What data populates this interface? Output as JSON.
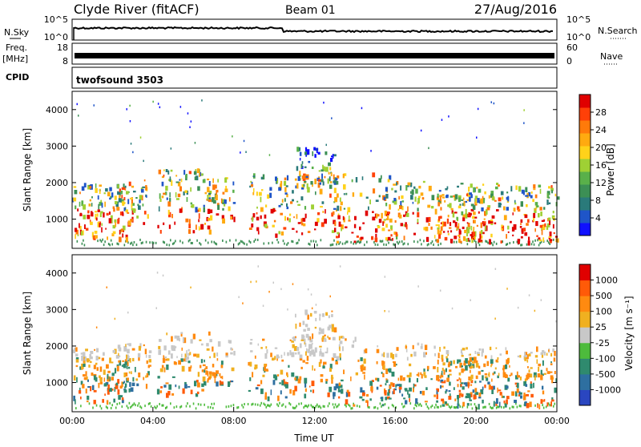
{
  "header": {
    "station": "Clyde River (fitACF)",
    "beam": "Beam 01",
    "date": "27/Aug/2016"
  },
  "top_panels": {
    "nsky_label": "N.Sky",
    "nsky_ticks": [
      "10^5",
      "10^0"
    ],
    "nsearch_label": "N.Search",
    "nsearch_ticks": [
      "10^5",
      "10^0"
    ],
    "freq_label": "Freq.",
    "freq_unit": "[MHz]",
    "freq_ticks": [
      "18",
      "8"
    ],
    "nave_label": "Nave",
    "nave_ticks": [
      "60",
      "0"
    ],
    "cpid_label": "CPID",
    "cpid_value": "twofsound 3503"
  },
  "chart_data": [
    {
      "type": "heatmap",
      "name": "power",
      "ylabel": "Slant Range [km]",
      "ylim": [
        200,
        4500
      ],
      "yticks": [
        "1000",
        "2000",
        "3000",
        "4000"
      ],
      "xticks": [
        "00:00",
        "04:00",
        "08:00",
        "12:00",
        "16:00",
        "20:00",
        "00:00"
      ],
      "colorbar": {
        "label": "Power [dB]",
        "ticks": [
          "4",
          "8",
          "12",
          "16",
          "20",
          "24",
          "28"
        ],
        "colors": [
          "#1010ff",
          "#1f55c8",
          "#2a7a7a",
          "#3c8f55",
          "#59b04a",
          "#9fd034",
          "#ffd21a",
          "#ffaa10",
          "#ff7a0a",
          "#ff4008",
          "#e00000"
        ]
      }
    },
    {
      "type": "heatmap",
      "name": "velocity",
      "ylabel": "Slant Range [km]",
      "ylim": [
        200,
        4500
      ],
      "yticks": [
        "1000",
        "2000",
        "3000",
        "4000"
      ],
      "xticks": [
        "00:00",
        "04:00",
        "08:00",
        "12:00",
        "16:00",
        "20:00",
        "00:00"
      ],
      "xlabel": "Time UT",
      "colorbar": {
        "label": "Velocity [m s⁻¹]",
        "ticks": [
          "1000",
          "500",
          "100",
          "25",
          "-25",
          "-100",
          "-500",
          "-1000"
        ],
        "colors": [
          "#2a46c0",
          "#2e6fa0",
          "#2f8a6e",
          "#4dbb3c",
          "#c8c8c8",
          "#f0b020",
          "#ff8a10",
          "#ff5a08",
          "#e00000"
        ]
      }
    }
  ]
}
